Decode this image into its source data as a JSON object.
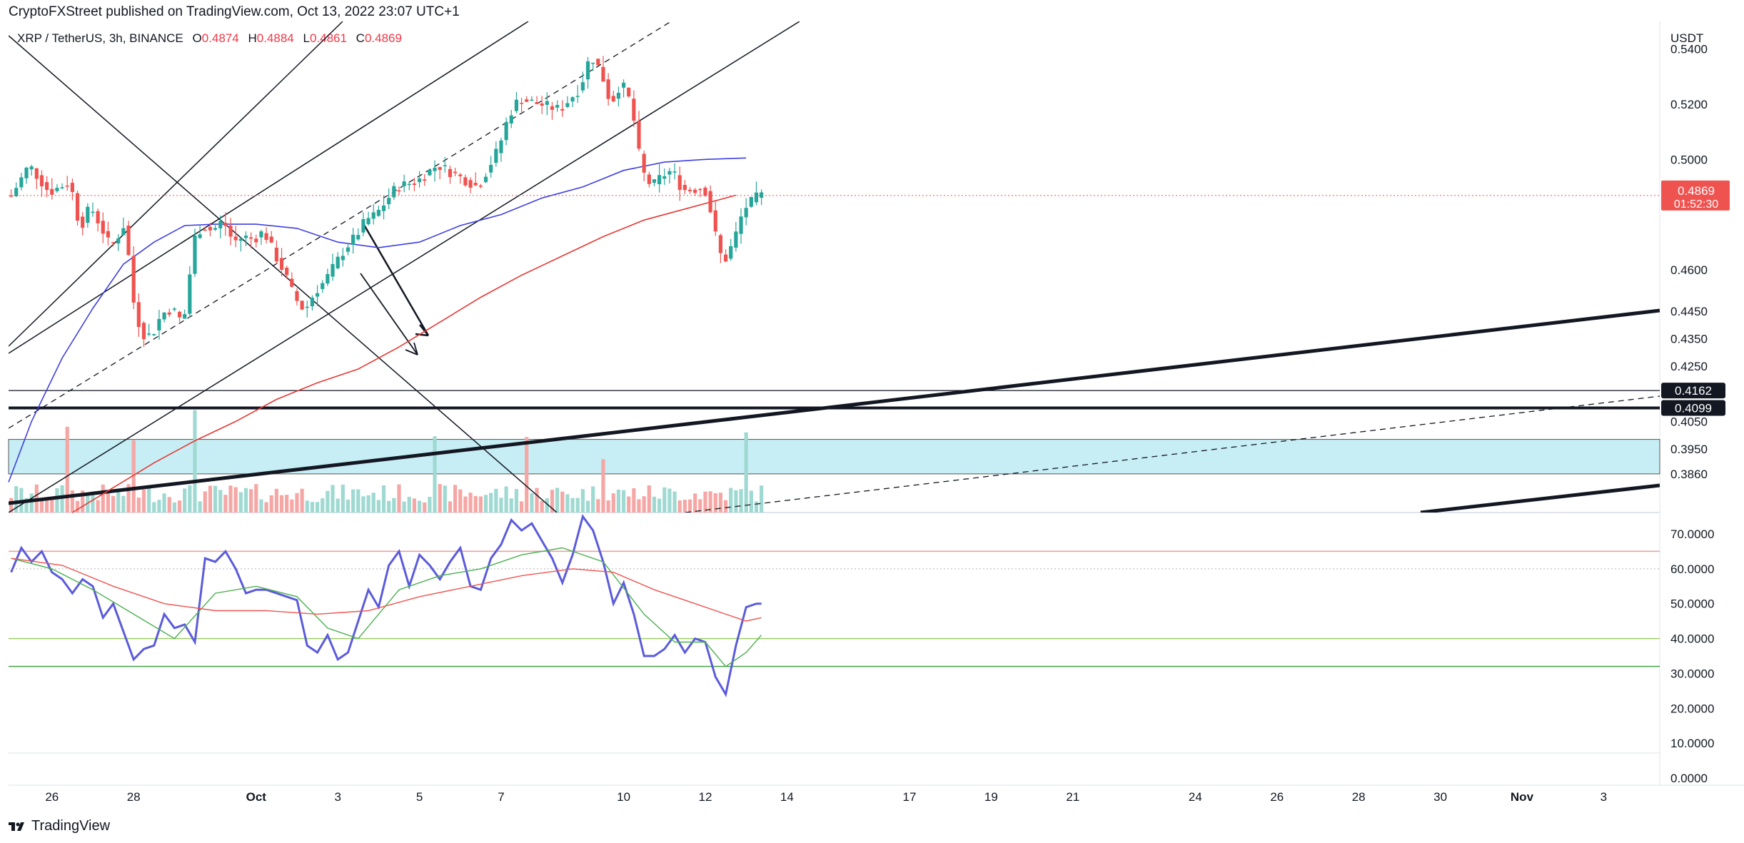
{
  "header": {
    "published": "CryptoFXStreet published on TradingView.com, Oct 13, 2022 23:07 UTC+1"
  },
  "symbol": {
    "name": "XRP / TetherUS, 3h, BINANCE",
    "o_label": "O",
    "o": "0.4874",
    "h_label": "H",
    "h": "0.4884",
    "l_label": "L",
    "l": "0.4861",
    "c_label": "C",
    "c": "0.4869"
  },
  "footer": {
    "brand": "TradingView",
    "logo_icon": "tradingview-logo-icon"
  },
  "colors": {
    "up": "#26a69a",
    "down": "#ef5350",
    "ma_blue": "#3f3fe0",
    "ma_red": "#e53935",
    "rsi": "#5b5bdc",
    "rsi_fast": "#4caf50",
    "rsi_slow": "#ef5350",
    "zone": "#c7eef5",
    "accent_price": "#ef5350"
  },
  "chart_data": [
    {
      "type": "candlestick",
      "title": "",
      "currency_label": "USDT",
      "y_ticks": [
        "0.5400",
        "0.5200",
        "0.5000",
        "0.4600",
        "0.4450",
        "0.4350",
        "0.4250",
        "0.4050",
        "0.3950",
        "0.3860"
      ],
      "ylim": [
        0.372,
        0.55
      ],
      "last_price": "0.4869",
      "countdown": "01:52:30",
      "levels": [
        {
          "label": "0.4162",
          "value": 0.4162
        },
        {
          "label": "0.4099",
          "value": 0.4099
        }
      ],
      "support_zone": [
        0.386,
        0.3985
      ],
      "x_ticks": [
        {
          "label": "26",
          "t": 8
        },
        {
          "label": "28",
          "t": 24
        },
        {
          "label": "Oct",
          "t": 48
        },
        {
          "label": "3",
          "t": 64
        },
        {
          "label": "5",
          "t": 80
        },
        {
          "label": "7",
          "t": 96
        },
        {
          "label": "10",
          "t": 120
        },
        {
          "label": "12",
          "t": 136
        },
        {
          "label": "14",
          "t": 152
        },
        {
          "label": "17",
          "t": 176
        },
        {
          "label": "19",
          "t": 192
        },
        {
          "label": "21",
          "t": 208
        },
        {
          "label": "24",
          "t": 232
        },
        {
          "label": "26",
          "t": 248
        },
        {
          "label": "28",
          "t": 264
        },
        {
          "label": "30",
          "t": 280
        },
        {
          "label": "Nov",
          "t": 296
        },
        {
          "label": "3",
          "t": 312
        }
      ],
      "series_ohlc": [],
      "moving_averages": [
        {
          "color": "blue",
          "points": [
            [
              -0.5,
              0.383
            ],
            [
              4,
              0.405
            ],
            [
              10,
              0.428
            ],
            [
              16,
              0.446
            ],
            [
              22,
              0.462
            ],
            [
              28,
              0.47
            ],
            [
              34,
              0.476
            ],
            [
              40,
              0.4765
            ],
            [
              48,
              0.4765
            ],
            [
              56,
              0.475
            ],
            [
              64,
              0.47
            ],
            [
              72,
              0.468
            ],
            [
              80,
              0.47
            ],
            [
              88,
              0.476
            ],
            [
              96,
              0.48
            ],
            [
              104,
              0.486
            ],
            [
              112,
              0.49
            ],
            [
              120,
              0.496
            ],
            [
              128,
              0.499
            ],
            [
              136,
              0.5
            ],
            [
              144,
              0.5005
            ]
          ]
        },
        {
          "color": "red",
          "points": [
            [
              12,
              0.372
            ],
            [
              20,
              0.381
            ],
            [
              28,
              0.39
            ],
            [
              36,
              0.398
            ],
            [
              44,
              0.405
            ],
            [
              52,
              0.413
            ],
            [
              60,
              0.419
            ],
            [
              68,
              0.424
            ],
            [
              76,
              0.432
            ],
            [
              84,
              0.441
            ],
            [
              92,
              0.45
            ],
            [
              100,
              0.458
            ],
            [
              108,
              0.465
            ],
            [
              116,
              0.472
            ],
            [
              124,
              0.478
            ],
            [
              132,
              0.482
            ],
            [
              140,
              0.486
            ],
            [
              142,
              0.487
            ]
          ]
        }
      ]
    },
    {
      "type": "line",
      "title": "",
      "y_ticks": [
        "70.0000",
        "60.0000",
        "50.0000",
        "40.0000",
        "30.0000",
        "20.0000",
        "10.0000",
        "0.0000"
      ],
      "ylim": [
        0,
        70
      ],
      "bands": {
        "upper": 65,
        "middle": 40,
        "lower": 32
      },
      "series": [
        {
          "key": "rsi",
          "color": "blue",
          "values": [
            [
              0,
              59
            ],
            [
              2,
              66
            ],
            [
              4,
              62
            ],
            [
              6,
              65
            ],
            [
              8,
              59
            ],
            [
              10,
              57
            ],
            [
              12,
              53
            ],
            [
              14,
              57
            ],
            [
              16,
              55
            ],
            [
              18,
              46
            ],
            [
              20,
              50
            ],
            [
              22,
              42
            ],
            [
              24,
              34
            ],
            [
              26,
              37
            ],
            [
              28,
              38
            ],
            [
              30,
              47
            ],
            [
              32,
              43
            ],
            [
              34,
              44
            ],
            [
              36,
              39
            ],
            [
              38,
              63
            ],
            [
              40,
              62
            ],
            [
              42,
              65
            ],
            [
              44,
              60
            ],
            [
              46,
              53
            ],
            [
              48,
              54
            ],
            [
              50,
              54
            ],
            [
              52,
              53
            ],
            [
              54,
              52
            ],
            [
              56,
              51
            ],
            [
              58,
              38
            ],
            [
              60,
              36
            ],
            [
              62,
              41
            ],
            [
              64,
              34
            ],
            [
              66,
              36
            ],
            [
              68,
              45
            ],
            [
              70,
              54
            ],
            [
              72,
              49
            ],
            [
              74,
              61
            ],
            [
              76,
              65
            ],
            [
              78,
              55
            ],
            [
              80,
              64
            ],
            [
              82,
              61
            ],
            [
              84,
              57
            ],
            [
              86,
              62
            ],
            [
              88,
              66
            ],
            [
              90,
              55
            ],
            [
              92,
              54
            ],
            [
              94,
              63
            ],
            [
              96,
              67
            ],
            [
              98,
              74
            ],
            [
              100,
              71
            ],
            [
              102,
              73
            ],
            [
              104,
              68
            ],
            [
              106,
              63
            ],
            [
              108,
              56
            ],
            [
              110,
              64
            ],
            [
              112,
              75
            ],
            [
              114,
              71
            ],
            [
              116,
              62
            ],
            [
              118,
              50
            ],
            [
              120,
              56
            ],
            [
              122,
              47
            ],
            [
              124,
              35
            ],
            [
              126,
              35
            ],
            [
              128,
              37
            ],
            [
              130,
              41
            ],
            [
              132,
              36
            ],
            [
              134,
              40
            ],
            [
              136,
              39
            ],
            [
              138,
              29
            ],
            [
              140,
              24
            ],
            [
              142,
              38
            ],
            [
              144,
              49
            ],
            [
              146,
              50
            ],
            [
              147,
              50
            ]
          ]
        },
        {
          "key": "fast",
          "color": "green",
          "values": [
            [
              0,
              63
            ],
            [
              8,
              60
            ],
            [
              16,
              54
            ],
            [
              24,
              47
            ],
            [
              32,
              40
            ],
            [
              40,
              53
            ],
            [
              48,
              55
            ],
            [
              56,
              52
            ],
            [
              62,
              43
            ],
            [
              68,
              40
            ],
            [
              76,
              54
            ],
            [
              84,
              58
            ],
            [
              92,
              60
            ],
            [
              100,
              64
            ],
            [
              108,
              66
            ],
            [
              116,
              62
            ],
            [
              124,
              47
            ],
            [
              130,
              39
            ],
            [
              136,
              39
            ],
            [
              140,
              32
            ],
            [
              144,
              36
            ],
            [
              147,
              41
            ]
          ]
        },
        {
          "key": "slow",
          "color": "red",
          "values": [
            [
              0,
              63
            ],
            [
              10,
              61
            ],
            [
              20,
              55
            ],
            [
              30,
              50
            ],
            [
              40,
              48
            ],
            [
              50,
              48
            ],
            [
              60,
              47
            ],
            [
              70,
              48
            ],
            [
              80,
              52
            ],
            [
              90,
              55
            ],
            [
              100,
              58
            ],
            [
              110,
              60
            ],
            [
              118,
              59
            ],
            [
              126,
              54
            ],
            [
              134,
              50
            ],
            [
              140,
              47
            ],
            [
              144,
              45
            ],
            [
              147,
              46
            ]
          ]
        }
      ]
    }
  ]
}
